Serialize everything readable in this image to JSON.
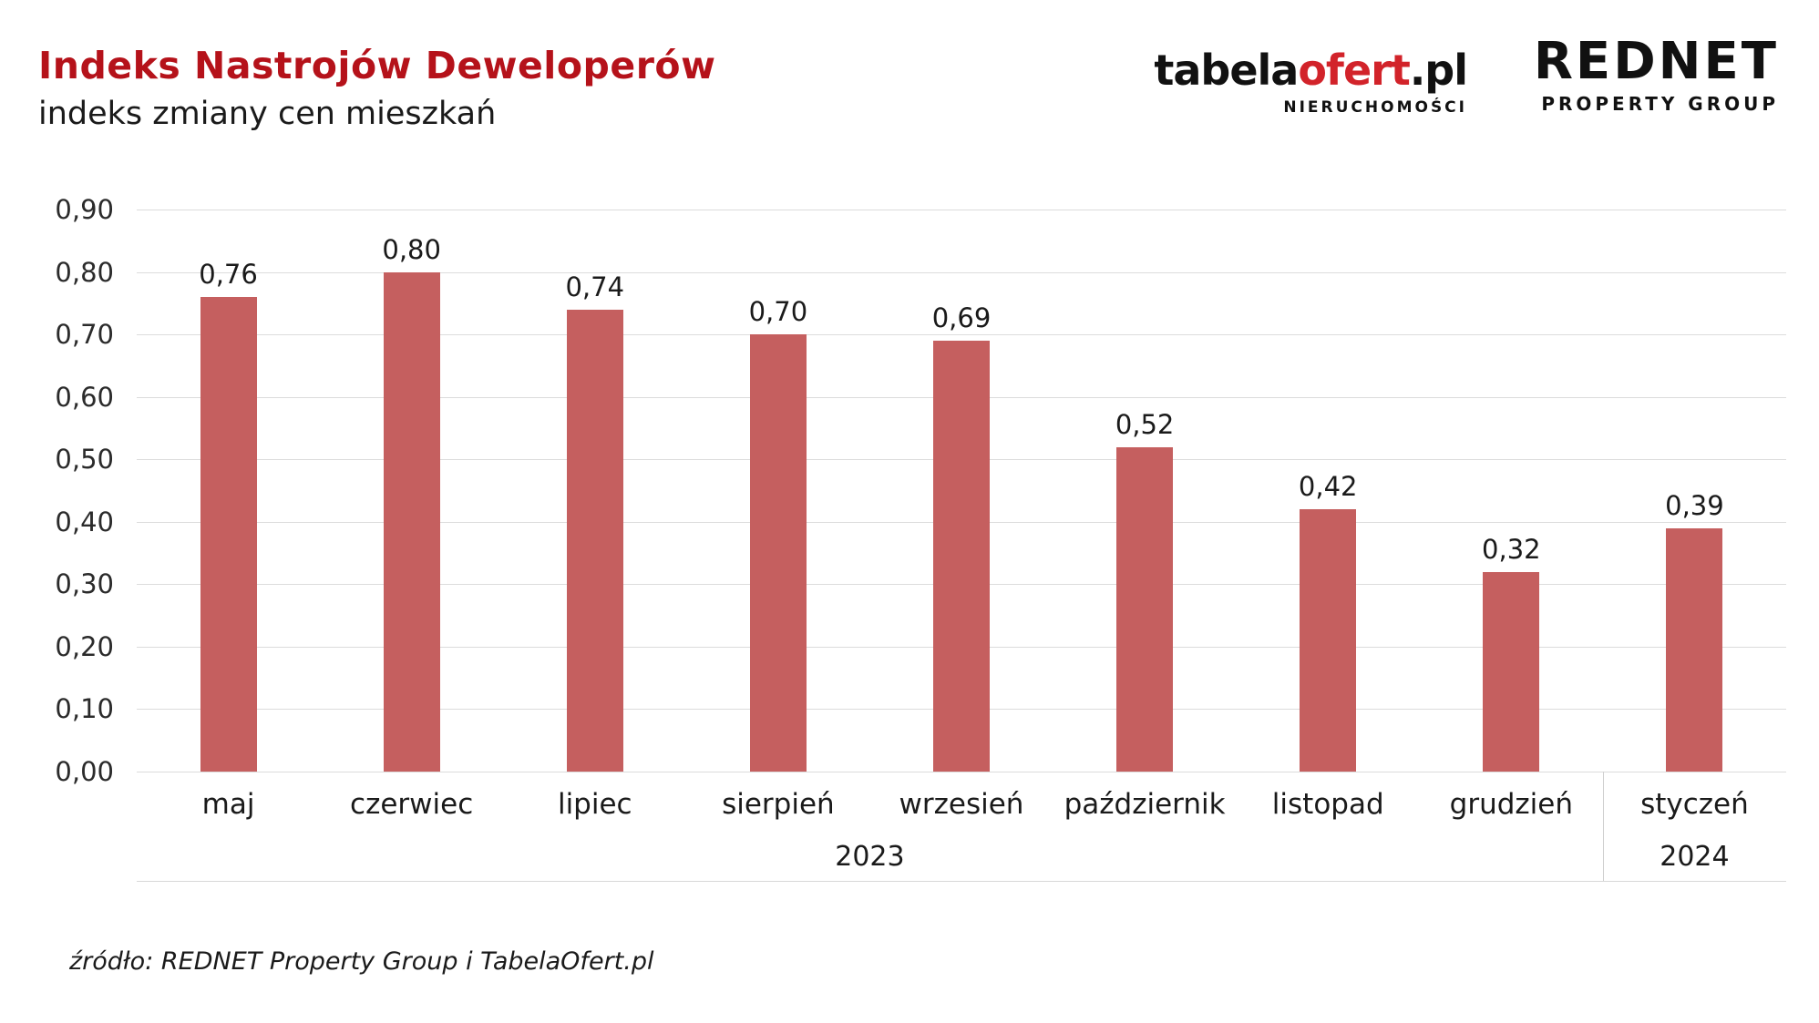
{
  "header": {
    "title": "Indeks Nastrojów Deweloperów",
    "subtitle": "indeks zmiany cen mieszkań"
  },
  "logos": {
    "tabelaofert": {
      "part_black": "tabela",
      "part_red": "ofert",
      "part_suffix": ".pl",
      "tagline": "NIERUCHOMOŚCI"
    },
    "rednet": {
      "name": "REDNET",
      "tagline": "PROPERTY GROUP"
    }
  },
  "chart_data": {
    "type": "bar",
    "title": "Indeks Nastrojów Deweloperów",
    "subtitle": "indeks zmiany cen mieszkań",
    "categories": [
      "maj",
      "czerwiec",
      "lipiec",
      "sierpień",
      "wrzesień",
      "październik",
      "listopad",
      "grudzień",
      "styczeń"
    ],
    "values": [
      0.76,
      0.8,
      0.74,
      0.7,
      0.69,
      0.52,
      0.42,
      0.32,
      0.39
    ],
    "value_labels": [
      "0,76",
      "0,80",
      "0,74",
      "0,70",
      "0,69",
      "0,52",
      "0,42",
      "0,32",
      "0,39"
    ],
    "year_groups": [
      {
        "label": "2023",
        "span": 8
      },
      {
        "label": "2024",
        "span": 1
      }
    ],
    "ylim": [
      0,
      0.9
    ],
    "ytick_step": 0.1,
    "ytick_labels": [
      "0,00",
      "0,10",
      "0,20",
      "0,30",
      "0,40",
      "0,50",
      "0,60",
      "0,70",
      "0,80",
      "0,90"
    ],
    "grid": true,
    "legend": "none",
    "bar_color": "#c55f5f"
  },
  "footer": {
    "source": "źródło: REDNET Property Group i TabelaOfert.pl"
  }
}
